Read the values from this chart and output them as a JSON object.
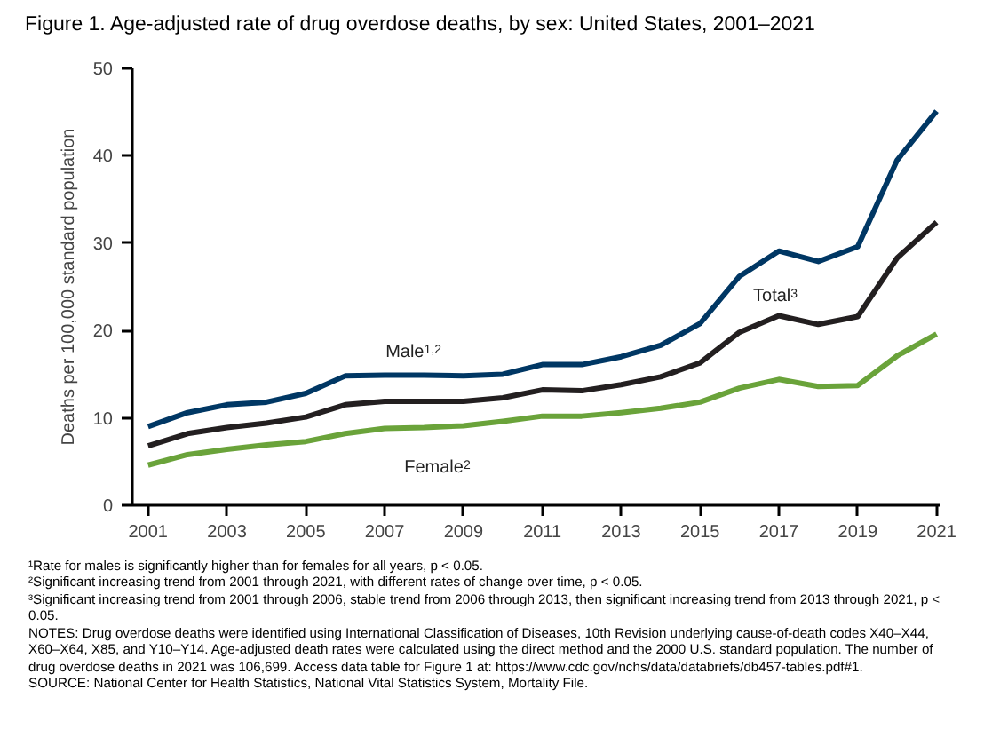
{
  "chart_data": {
    "type": "line",
    "title": "Figure 1. Age-adjusted rate of drug overdose deaths, by sex: United States, 2001–2021",
    "ylabel": "Deaths per 100,000 standard population",
    "x": [
      2001,
      2002,
      2003,
      2004,
      2005,
      2006,
      2007,
      2008,
      2009,
      2010,
      2011,
      2012,
      2013,
      2014,
      2015,
      2016,
      2017,
      2018,
      2019,
      2020,
      2021
    ],
    "xlim": [
      2000.6,
      2021.1
    ],
    "xticks": [
      2001,
      2003,
      2005,
      2007,
      2009,
      2011,
      2013,
      2015,
      2017,
      2019,
      2021
    ],
    "ylim": [
      0,
      50
    ],
    "yticks": [
      0,
      10,
      20,
      30,
      40,
      50
    ],
    "series": [
      {
        "name": "Male$^{1,2}$",
        "color": "#003764",
        "values": [
          9.0,
          10.6,
          11.5,
          11.8,
          12.8,
          14.8,
          14.9,
          14.9,
          14.8,
          15.0,
          16.1,
          16.1,
          17.0,
          18.3,
          20.8,
          26.2,
          29.1,
          27.9,
          29.6,
          39.5,
          45.1
        ]
      },
      {
        "name": "Total$^{3}$",
        "color": "#231f20",
        "values": [
          6.8,
          8.2,
          8.9,
          9.4,
          10.1,
          11.5,
          11.9,
          11.9,
          11.9,
          12.3,
          13.2,
          13.1,
          13.8,
          14.7,
          16.3,
          19.8,
          21.7,
          20.7,
          21.6,
          28.3,
          32.4
        ]
      },
      {
        "name": "Female$^{2}$",
        "color": "#6aa33a",
        "values": [
          4.6,
          5.8,
          6.4,
          6.9,
          7.3,
          8.2,
          8.8,
          8.9,
          9.1,
          9.6,
          10.2,
          10.2,
          10.6,
          11.1,
          11.8,
          13.4,
          14.4,
          13.6,
          13.7,
          17.1,
          19.6
        ]
      }
    ],
    "grid": false,
    "legend": false,
    "line_style": "solid",
    "marker": "none",
    "annotations": [
      "¹Rate for males is significantly higher than for females for all years, p < 0.05.",
      "²Significant increasing trend from 2001 through 2021, with different rates of change over time, p < 0.05.",
      "³Significant increasing trend from 2001 through 2006, stable trend from 2006 through 2013, then significant increasing trend from 2013 through 2021, p < 0.05.",
      "NOTES: Drug overdose deaths were identified using International Classification of Diseases, 10th Revision underlying cause-of-death codes X40–X44, X60–X64, X85, and Y10–Y14. Age-adjusted death rates were calculated using the direct method and the 2000 U.S. standard population. The number of drug overdose deaths in 2021 was 106,699. Access data table for Figure 1 at: https://www.cdc.gov/nchs/data/databriefs/db457-tables.pdf#1.",
      "SOURCE: National Center for Health Statistics, National Vital Statistics System, Mortality File."
    ]
  }
}
